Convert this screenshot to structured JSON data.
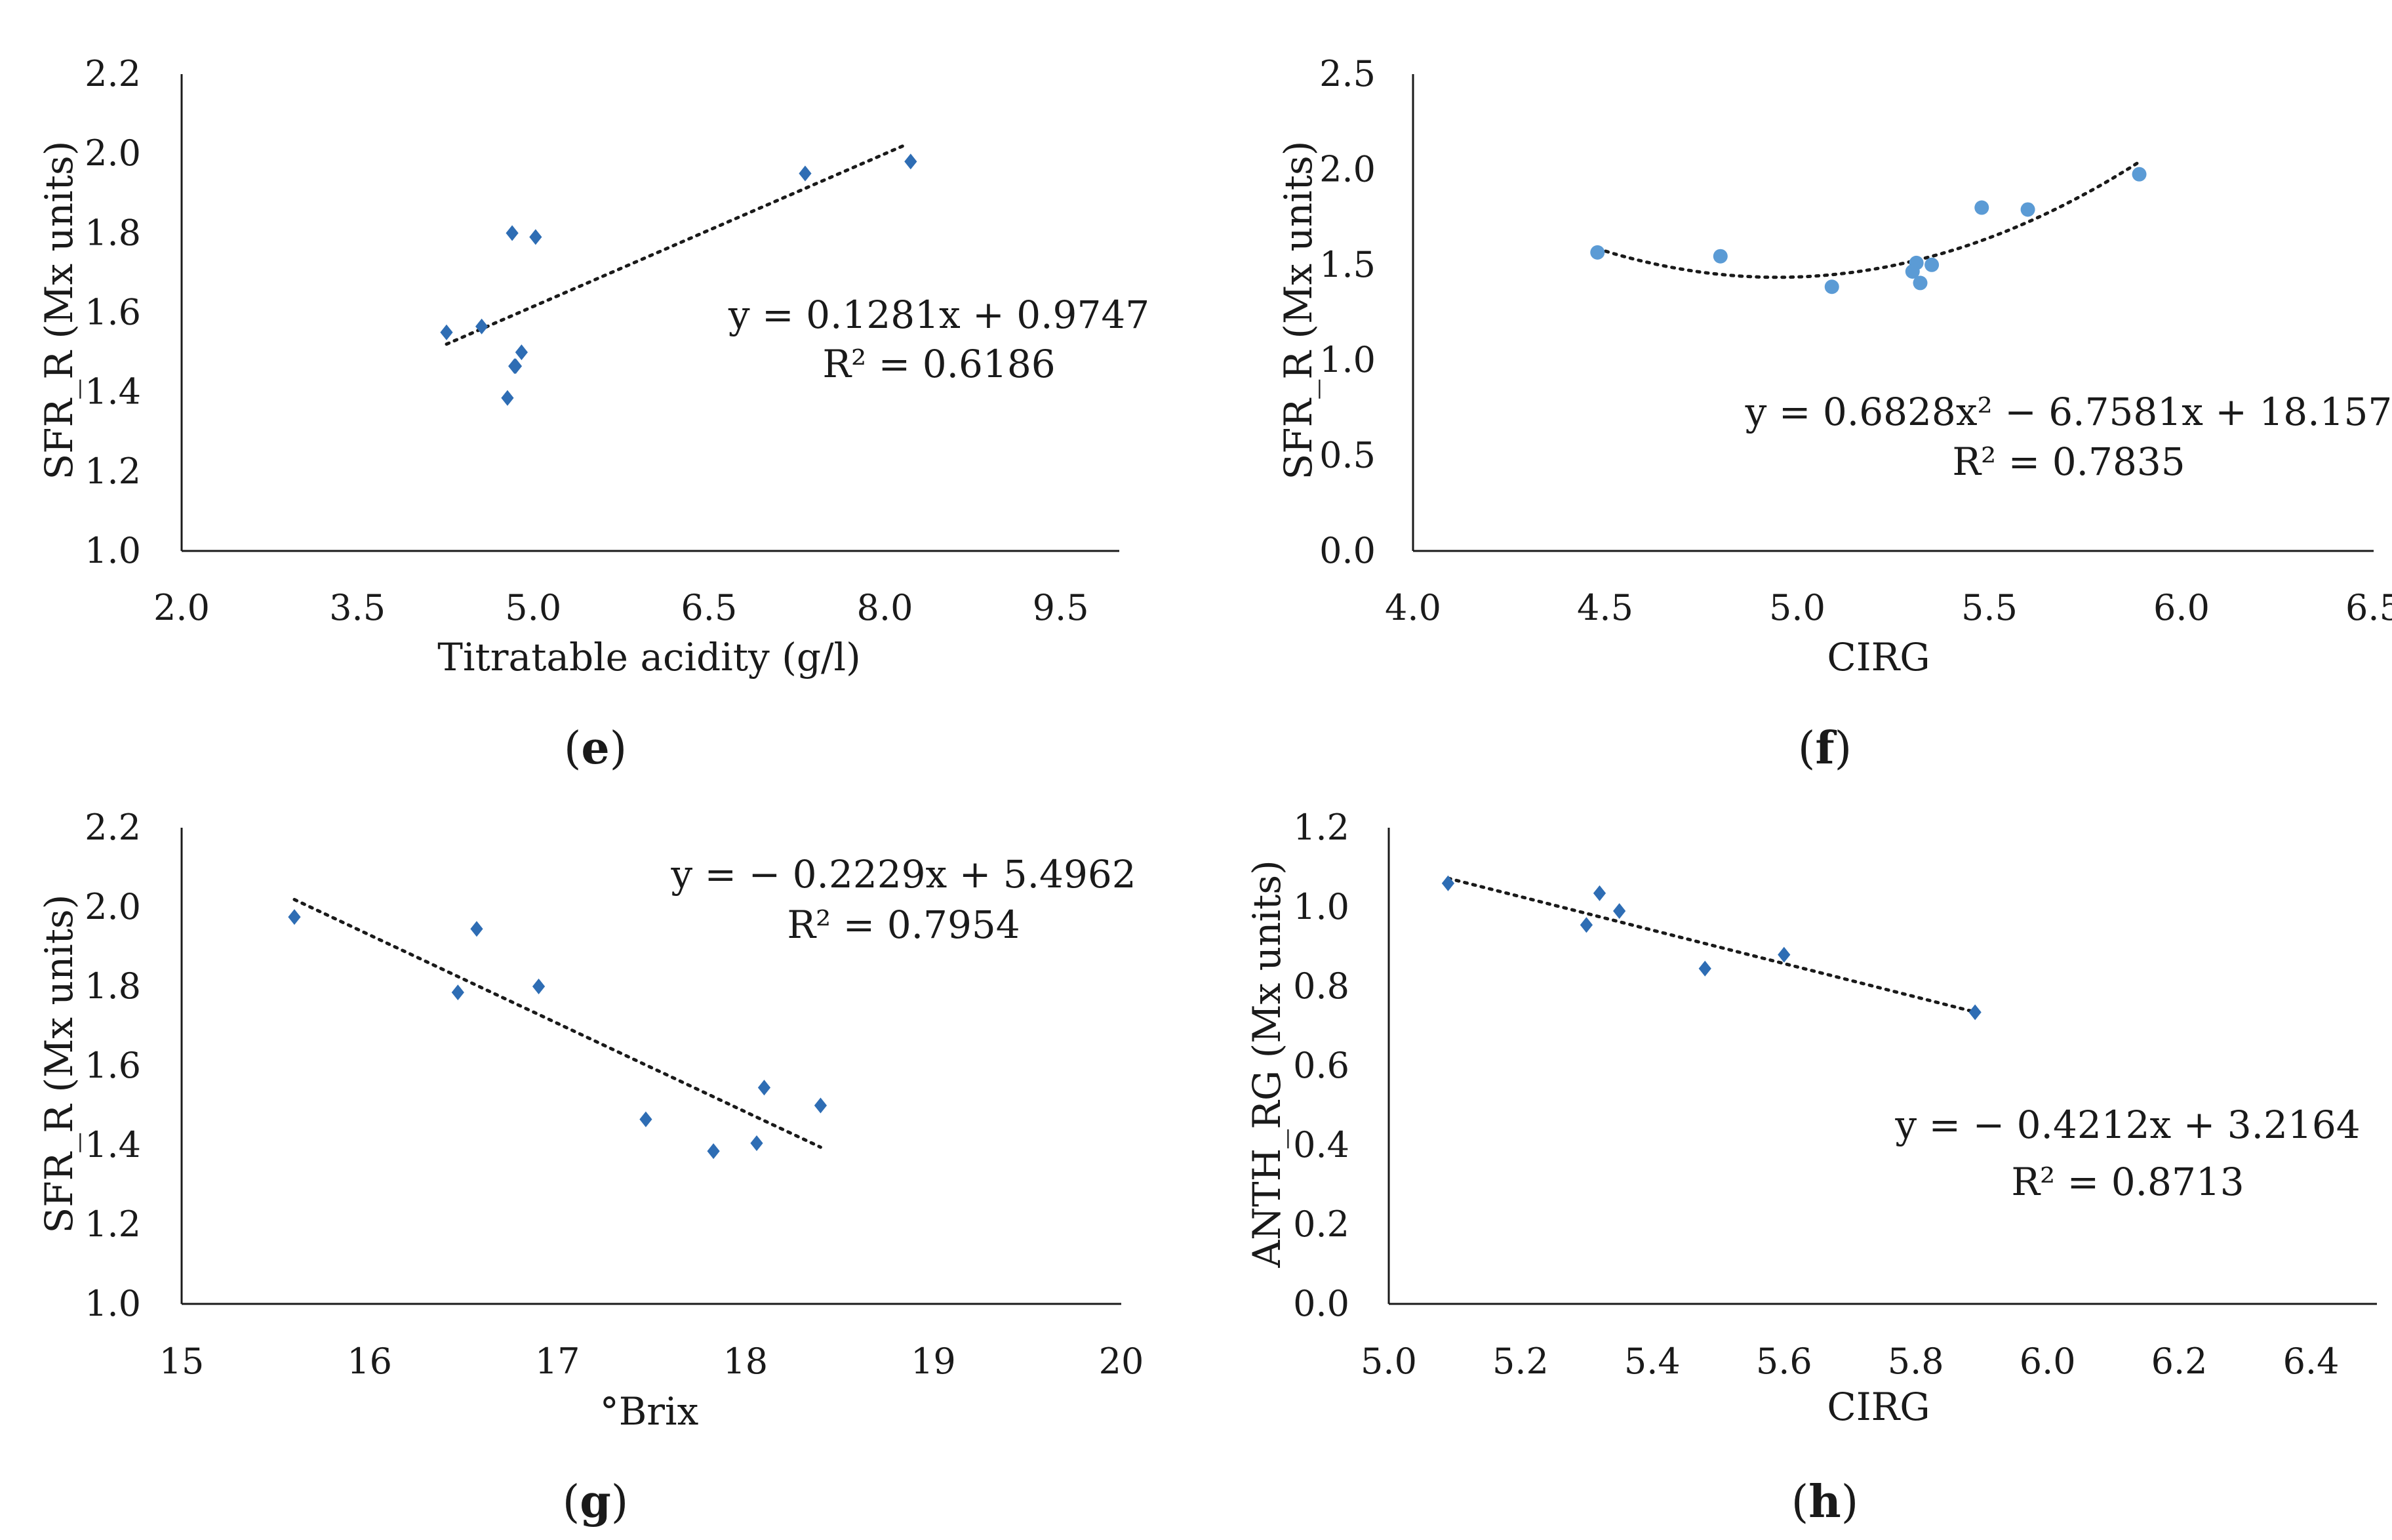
{
  "chart_data": [
    {
      "type": "scatter",
      "panel": "e",
      "marker": "diamond",
      "color": "#2e6db4",
      "xlabel": "Titratable acidity (g/l)",
      "ylabel": "SFR_R (Mx units)",
      "xlim": [
        2.0,
        10.0
      ],
      "ylim": [
        1.0,
        2.2
      ],
      "xticks": [
        "2.0",
        "3.5",
        "5.0",
        "6.5",
        "8.0",
        "9.5"
      ],
      "yticks": [
        "1.0",
        "1.2",
        "1.4",
        "1.6",
        "1.8",
        "2.0",
        "2.2"
      ],
      "x": [
        4.26,
        4.56,
        4.78,
        4.85,
        4.82,
        4.9,
        5.02,
        7.32,
        8.22,
        4.84
      ],
      "y": [
        1.55,
        1.565,
        1.385,
        1.465,
        1.8,
        1.5,
        1.79,
        1.95,
        1.98,
        1.465
      ],
      "trend": {
        "kind": "linear",
        "coef": [
          0.1281,
          0.9747
        ],
        "xrange": [
          4.26,
          8.18
        ]
      },
      "equation": "y = 0.1281x + 0.9747",
      "r2": "R² = 0.6186",
      "label": "e"
    },
    {
      "type": "scatter",
      "panel": "f",
      "marker": "circle",
      "color": "#5b9bd5",
      "xlabel": "CIRG",
      "ylabel": "SFR_R (Mx units)",
      "xlim": [
        4.0,
        6.5
      ],
      "ylim": [
        0.0,
        2.5
      ],
      "xticks": [
        "4.0",
        "4.5",
        "5.0",
        "5.5",
        "6.0",
        "6.5"
      ],
      "yticks": [
        "0.0",
        "0.5",
        "1.0",
        "1.5",
        "2.0",
        "2.5"
      ],
      "x": [
        4.48,
        4.8,
        5.09,
        5.3,
        5.31,
        5.32,
        5.35,
        5.48,
        5.6,
        5.89
      ],
      "y": [
        1.565,
        1.545,
        1.385,
        1.465,
        1.51,
        1.405,
        1.5,
        1.8,
        1.79,
        1.975
      ],
      "trend": {
        "kind": "quadratic",
        "coef": [
          0.6828,
          -6.7581,
          18.157
        ],
        "xrange": [
          4.48,
          5.89
        ]
      },
      "equation": "y = 0.6828x² − 6.7581x + 18.157",
      "r2": "R² = 0.7835",
      "label": "f"
    },
    {
      "type": "scatter",
      "panel": "g",
      "marker": "diamond",
      "color": "#2e6db4",
      "xlabel": "°Brix",
      "ylabel": "SFR_R (Mx units)",
      "xlim": [
        15,
        20
      ],
      "ylim": [
        1.0,
        2.2
      ],
      "xticks": [
        "15",
        "16",
        "17",
        "18",
        "19",
        "20"
      ],
      "yticks": [
        "1.0",
        "1.2",
        "1.4",
        "1.6",
        "1.8",
        "2.0",
        "2.2"
      ],
      "x": [
        15.6,
        16.47,
        16.57,
        16.9,
        17.47,
        17.83,
        18.06,
        18.1,
        18.4
      ],
      "y": [
        1.975,
        1.785,
        1.945,
        1.8,
        1.465,
        1.385,
        1.405,
        1.545,
        1.5
      ],
      "trend": {
        "kind": "linear",
        "coef": [
          -0.2229,
          5.4962
        ],
        "xrange": [
          15.6,
          18.4
        ]
      },
      "equation": "y = − 0.2229x + 5.4962",
      "r2": "R² = 0.7954",
      "label": "g"
    },
    {
      "type": "scatter",
      "panel": "h",
      "marker": "diamond",
      "color": "#2e6db4",
      "xlabel": "CIRG",
      "ylabel": "ANTH_RG (Mx units)",
      "xlim": [
        5.0,
        6.5
      ],
      "ylim": [
        0.0,
        1.2
      ],
      "xticks": [
        "5.0",
        "5.2",
        "5.4",
        "5.6",
        "5.8",
        "6.0",
        "6.2",
        "6.4"
      ],
      "yticks": [
        "0.0",
        "0.2",
        "0.4",
        "0.6",
        "0.8",
        "1.0",
        "1.2"
      ],
      "x": [
        5.09,
        5.3,
        5.32,
        5.35,
        5.48,
        5.6,
        5.89
      ],
      "y": [
        1.06,
        0.955,
        1.035,
        0.99,
        0.845,
        0.88,
        0.735
      ],
      "trend": {
        "kind": "linear",
        "coef": [
          -0.4212,
          3.2164
        ],
        "xrange": [
          5.09,
          5.89
        ]
      },
      "equation": "y = − 0.4212x + 3.2164",
      "r2": "R² = 0.8713",
      "label": "h"
    }
  ]
}
